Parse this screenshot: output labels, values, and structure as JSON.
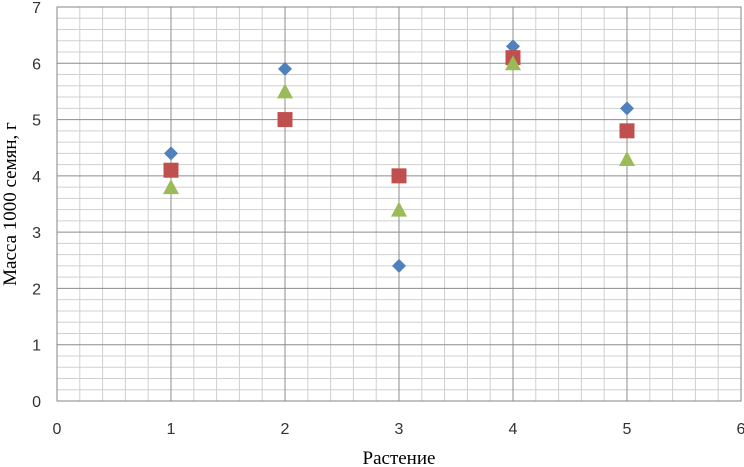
{
  "chart_data": {
    "type": "scatter",
    "title": "",
    "xlabel": "Растение",
    "ylabel": "Масса 1000 семян, г",
    "xlim": [
      0,
      6
    ],
    "ylim": [
      0,
      7
    ],
    "x_ticks": [
      "0",
      "1",
      "2",
      "3",
      "4",
      "5",
      "6"
    ],
    "y_ticks": [
      "0",
      "1",
      "2",
      "3",
      "4",
      "5",
      "6",
      "7"
    ],
    "grid": true,
    "legend": "none",
    "series": [
      {
        "marker": "diamond",
        "color": "#4F81BD",
        "x": [
          1,
          2,
          3,
          4,
          5
        ],
        "y": [
          4.4,
          5.9,
          2.4,
          6.3,
          5.2
        ]
      },
      {
        "marker": "square",
        "color": "#C0504D",
        "x": [
          1,
          2,
          3,
          4,
          5
        ],
        "y": [
          4.1,
          5.0,
          4.0,
          6.1,
          4.8
        ]
      },
      {
        "marker": "triangle",
        "color": "#9BBB59",
        "x": [
          1,
          2,
          3,
          4,
          5
        ],
        "y": [
          3.8,
          5.5,
          3.4,
          6.0,
          4.3
        ]
      }
    ]
  }
}
